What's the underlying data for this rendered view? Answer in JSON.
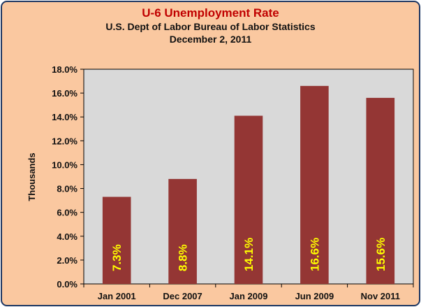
{
  "header": {
    "title": "U-6 Unemployment Rate",
    "subtitle": "U.S. Dept of Labor Bureau of Labor Statistics",
    "date": "December 2, 2011"
  },
  "colors": {
    "background": "#fac8a0",
    "plot_area": "#d9d9d9",
    "bar": "#943634",
    "data_label": "#ffff00",
    "title": "#c00000"
  },
  "chart_data": {
    "type": "bar",
    "title": "U-6 Unemployment Rate",
    "xlabel": "",
    "ylabel": "Thousands",
    "categories": [
      "Jan 2001",
      "Dec 2007",
      "Jan 2009",
      "Jun 2009",
      "Nov 2011"
    ],
    "values": [
      7.3,
      8.8,
      14.1,
      16.6,
      15.6
    ],
    "data_labels": [
      "7.3%",
      "8.8%",
      "14.1%",
      "16.6%",
      "15.6%"
    ],
    "ylim": [
      0,
      18
    ],
    "yticks": [
      0,
      2,
      4,
      6,
      8,
      10,
      12,
      14,
      16,
      18
    ],
    "ytick_labels": [
      "0.0%",
      "2.0%",
      "4.0%",
      "6.0%",
      "8.0%",
      "10.0%",
      "12.0%",
      "14.0%",
      "16.0%",
      "18.0%"
    ],
    "grid": false,
    "legend": "none"
  }
}
